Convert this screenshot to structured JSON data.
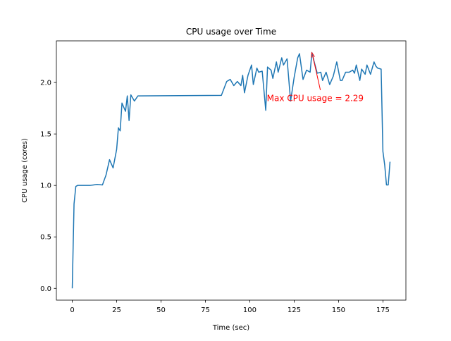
{
  "chart_data": {
    "type": "line",
    "title": "CPU usage over Time",
    "xlabel": "Time (sec)",
    "ylabel": "CPU usage (cores)",
    "x": [
      0,
      1,
      2,
      3,
      5,
      8,
      10,
      12,
      14,
      17,
      19,
      21,
      23,
      25,
      26,
      27,
      28,
      30,
      31,
      32,
      33,
      35,
      37,
      84,
      87,
      89,
      91,
      93,
      95,
      96,
      97,
      99,
      101,
      102,
      104,
      105,
      107,
      109,
      110,
      112,
      113,
      115,
      116,
      118,
      119,
      121,
      123,
      125,
      127,
      128,
      130,
      132,
      134,
      135,
      136,
      138,
      140,
      141,
      143,
      145,
      147,
      149,
      151,
      152,
      154,
      156,
      158,
      159,
      160,
      162,
      163,
      165,
      166,
      168,
      170,
      171,
      172,
      174,
      175,
      176,
      177,
      178,
      179
    ],
    "values": [
      0,
      0.82,
      0.99,
      1.0,
      1.0,
      1.0,
      1.0,
      1.005,
      1.01,
      1.005,
      1.1,
      1.25,
      1.17,
      1.35,
      1.56,
      1.53,
      1.8,
      1.72,
      1.87,
      1.63,
      1.88,
      1.82,
      1.87,
      1.875,
      2.01,
      2.03,
      1.97,
      2.01,
      1.97,
      2.07,
      1.9,
      2.07,
      2.17,
      1.98,
      2.14,
      2.1,
      2.11,
      1.73,
      2.15,
      2.12,
      2.04,
      2.2,
      2.1,
      2.24,
      2.17,
      2.23,
      1.82,
      2.05,
      2.24,
      2.28,
      2.03,
      2.12,
      2.1,
      2.29,
      2.22,
      2.09,
      2.1,
      2.02,
      2.1,
      1.98,
      2.06,
      2.2,
      2.02,
      2.02,
      2.1,
      2.1,
      2.12,
      2.09,
      2.17,
      2.02,
      2.13,
      2.08,
      2.17,
      2.08,
      2.2,
      2.16,
      2.14,
      2.13,
      1.33,
      1.2,
      1.005,
      1.005,
      1.23
    ],
    "color": "#1f77b4",
    "xlim": [
      -8.95,
      187.95
    ],
    "xticks": [
      0,
      25,
      50,
      75,
      100,
      125,
      150,
      175
    ],
    "ylim": [
      -0.1145,
      2.4045
    ],
    "yticks": [
      {
        "value": 0,
        "label": "0.0"
      },
      {
        "value": 0.5,
        "label": "0.5"
      },
      {
        "value": 1,
        "label": "1.0"
      },
      {
        "value": 1.5,
        "label": "1.5"
      },
      {
        "value": 2,
        "label": "2.0"
      }
    ],
    "annotation": {
      "text": "Max CPU usage = 2.29",
      "color": "red"
    }
  }
}
